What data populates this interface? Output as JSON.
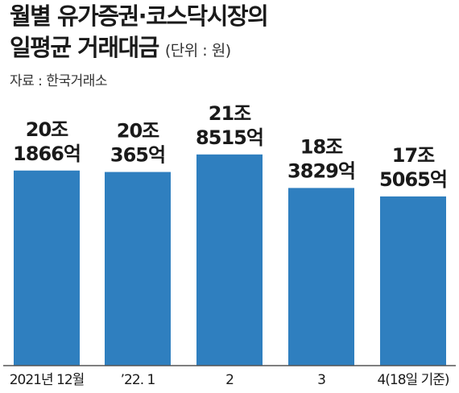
{
  "header": {
    "title_line1": "월별 유가증권·코스닥시장의",
    "title_line2": "일평균 거래대금",
    "unit": "(단위 : 원)",
    "source": "자료 : 한국거래소"
  },
  "chart_data": {
    "type": "bar",
    "title": "월별 유가증권·코스닥시장의 일평균 거래대금",
    "unit": "원",
    "categories": [
      "2021년 12월",
      "’22. 1",
      "2",
      "3",
      "4(18일 기준)"
    ],
    "values": [
      201866,
      200365,
      218515,
      183829,
      175065
    ],
    "value_unit": "억",
    "labels": [
      [
        "20조",
        "1866억"
      ],
      [
        "20조",
        "365억"
      ],
      [
        "21조",
        "8515억"
      ],
      [
        "18조",
        "3829억"
      ],
      [
        "17조",
        "5065억"
      ]
    ],
    "colors": {
      "bar": "#2f7fbf",
      "axis": "#555555"
    },
    "ylim": [
      0,
      225000
    ],
    "grid": false,
    "legend": "none"
  }
}
